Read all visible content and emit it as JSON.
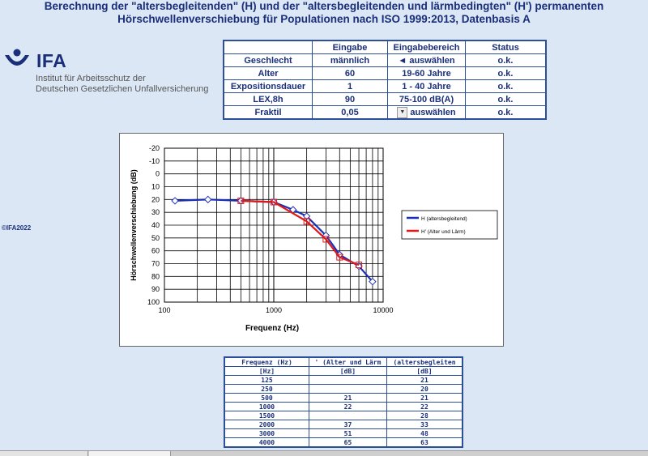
{
  "header": {
    "line1": "Berechnung der \"altersbegleitenden\" (H) und der \"altersbegleitenden und lärmbedingten\" (H') permanenten",
    "line2": "Hörschwellenverschiebung für Populationen nach ISO 1999:2013, Datenbasis A"
  },
  "logo": {
    "name": "IFA",
    "line1": "Institut für Arbeitsschutz der",
    "line2": "Deutschen Gesetzlichen Unfallversicherung",
    "color": "#1a2f7a"
  },
  "copyright": "©IFA2022",
  "input_table": {
    "headers": [
      "",
      "Eingabe",
      "Eingabebereich",
      "Status"
    ],
    "rows": [
      {
        "label": "Geschlecht",
        "value": "männlich",
        "range": "◄ auswählen",
        "status": "o.k."
      },
      {
        "label": "Alter",
        "value": "60",
        "range": "19-60 Jahre",
        "status": "o.k."
      },
      {
        "label": "Expositionsdauer",
        "value": "1",
        "range": "1 - 40 Jahre",
        "status": "o.k."
      },
      {
        "label": "LEX,8h",
        "value": "90",
        "range": "75-100 dB(A)",
        "status": "o.k."
      },
      {
        "label": "Fraktil",
        "value": "0,05",
        "range": "auswählen",
        "status": "o.k."
      }
    ]
  },
  "chart_data": {
    "type": "line",
    "xscale": "log",
    "xlim": [
      100,
      10000
    ],
    "ylim": [
      -20,
      100
    ],
    "y_inverted": true,
    "xticks": [
      "100",
      "1000",
      "10000"
    ],
    "yticks": [
      "-20",
      "-10",
      "0",
      "10",
      "20",
      "30",
      "40",
      "50",
      "60",
      "70",
      "80",
      "90",
      "100"
    ],
    "xlabel": "Frequenz (Hz)",
    "ylabel": "Hörschwellenverschiebung (dB)",
    "legend_position": "right",
    "series": [
      {
        "name": "H (altersbegleitend)",
        "color": "#1a2fb8",
        "marker": "diamond",
        "x": [
          125,
          250,
          500,
          1000,
          1500,
          2000,
          3000,
          4000,
          6000,
          8000
        ],
        "y": [
          21,
          20,
          21,
          22,
          28,
          33,
          48,
          63,
          72,
          84
        ]
      },
      {
        "name": "H' (Alter und Lärm)",
        "color": "#e01818",
        "marker": "square",
        "x": [
          500,
          1000,
          2000,
          3000,
          4000,
          6000
        ],
        "y": [
          21,
          22,
          37,
          51,
          65,
          71
        ]
      }
    ]
  },
  "output_table": {
    "headers": [
      "Frequenz (Hz)",
      "' (Alter und Lärm",
      "(altersbegleiten"
    ],
    "units": [
      "[Hz]",
      "[dB]",
      "[dB]"
    ],
    "rows": [
      [
        "125",
        "",
        "21"
      ],
      [
        "250",
        "",
        "20"
      ],
      [
        "500",
        "21",
        "21"
      ],
      [
        "1000",
        "22",
        "22"
      ],
      [
        "1500",
        "",
        "28"
      ],
      [
        "2000",
        "37",
        "33"
      ],
      [
        "3000",
        "51",
        "48"
      ],
      [
        "4000",
        "65",
        "63"
      ]
    ]
  }
}
